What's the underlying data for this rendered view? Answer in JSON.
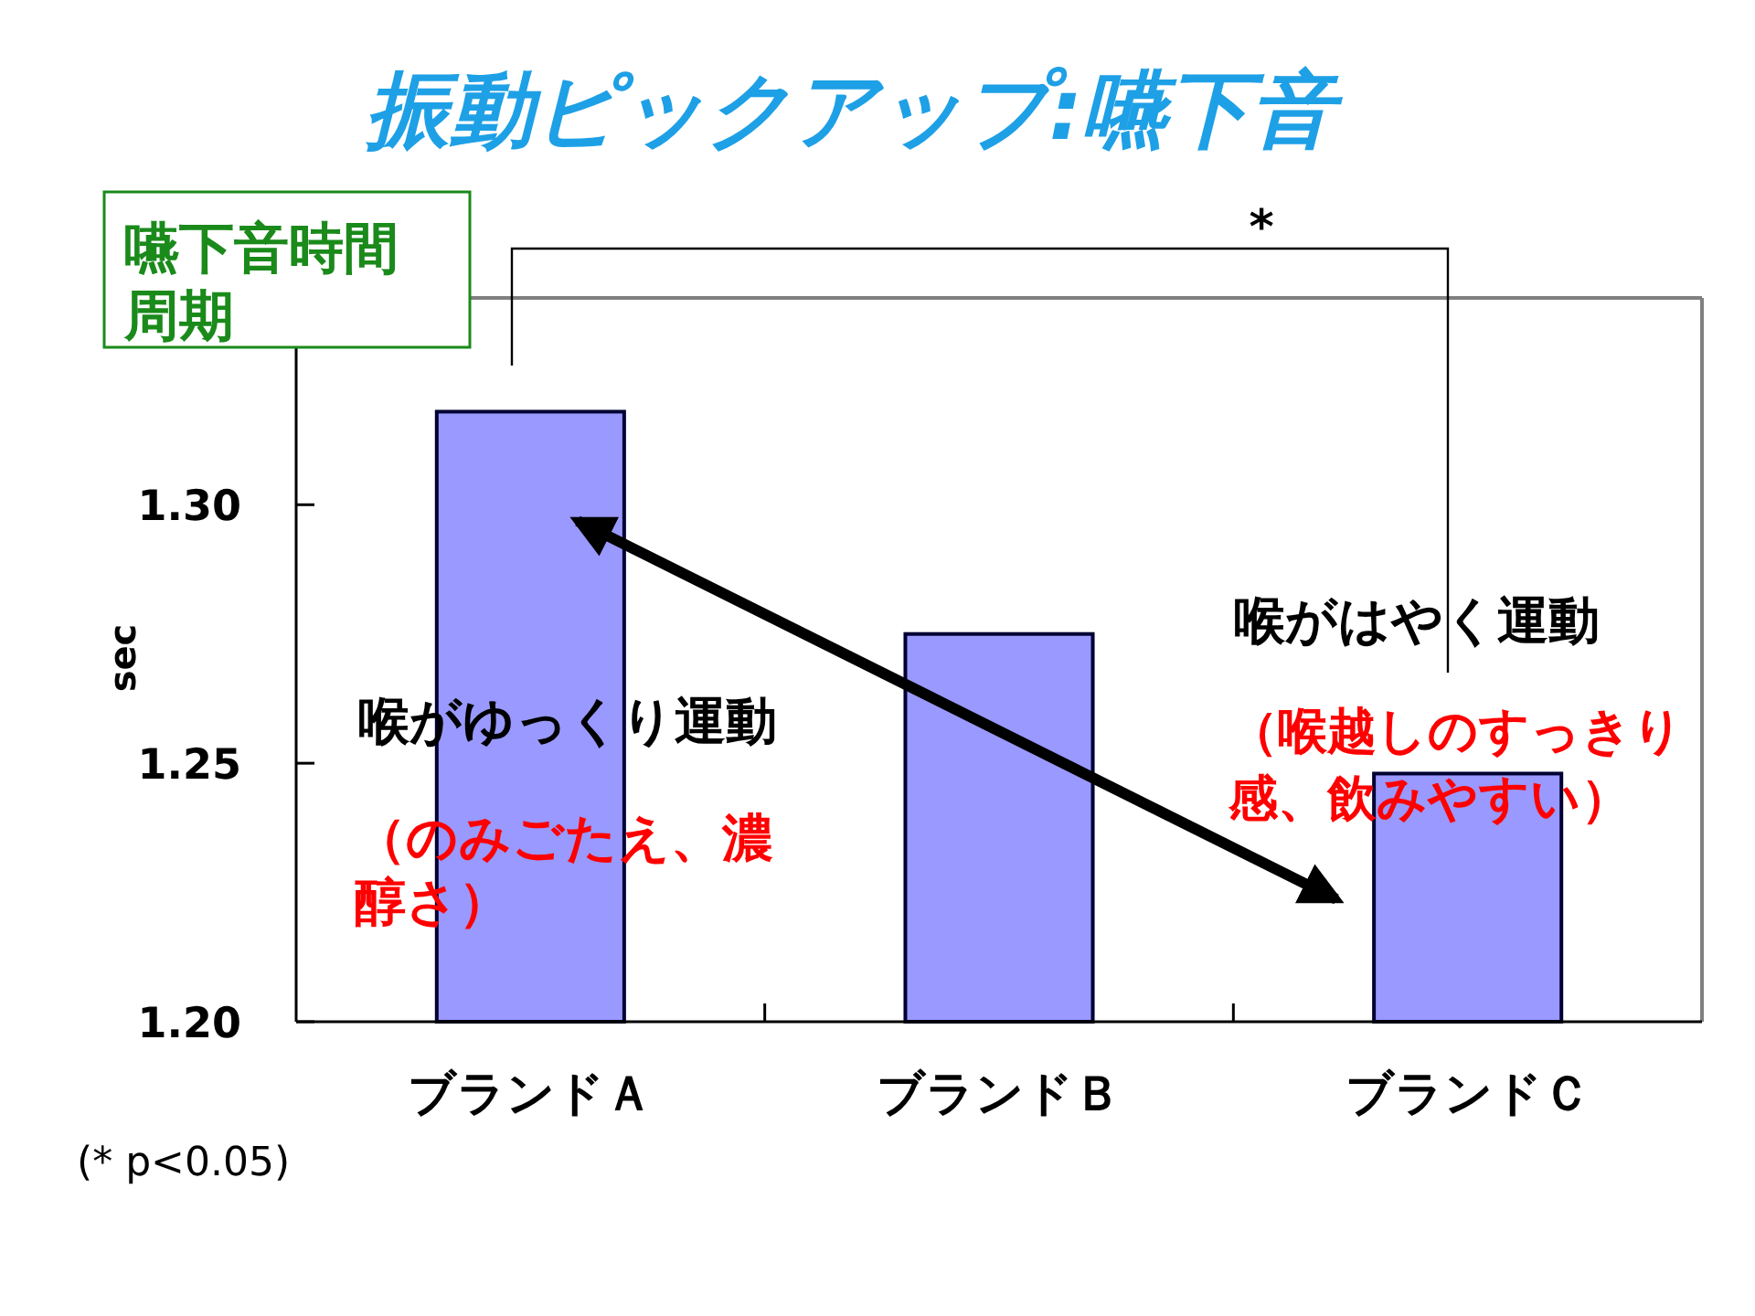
{
  "chart_data": {
    "type": "bar",
    "title": "振動ピックアップ:嚥下音",
    "ylabel": "sec",
    "categories": [
      "ブランドＡ",
      "ブランドＢ",
      "ブランドＣ"
    ],
    "values": [
      1.318,
      1.275,
      1.248
    ],
    "color": "#9999ff",
    "ylim": [
      1.2,
      1.34
    ],
    "yticks": [
      {
        "value": 1.2,
        "label": "1.20"
      },
      {
        "value": 1.25,
        "label": "1.25"
      },
      {
        "value": 1.3,
        "label": "1.30"
      }
    ],
    "grid": false,
    "annotations": [
      "嚥下音時間周期",
      "喉がゆっくり運動",
      "（のみごたえ、濃醇さ）",
      "喉がはやく運動",
      "（喉越しのすっきり感、飲みやすい）",
      "*",
      "(* p<0.05)"
    ]
  }
}
